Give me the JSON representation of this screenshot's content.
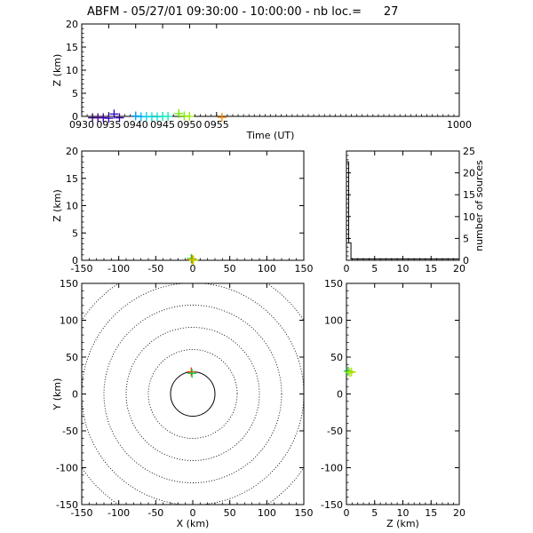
{
  "header": {
    "title": "ABFM - 05/27/01 09:30:00 - 10:00:00 - nb loc.=      27"
  },
  "chart_data": [
    {
      "id": "time-height",
      "type": "scatter",
      "xlabel": "Time (UT)",
      "ylabel": "Z (km)",
      "xlim": [
        930,
        1000
      ],
      "ylim": [
        0,
        20
      ],
      "xticks": [
        "0930",
        "0935",
        "0940",
        "0945",
        "0950",
        "0955",
        "1000"
      ],
      "xtick_values": [
        930,
        935,
        940,
        945,
        950,
        955,
        1000
      ],
      "yticks": [
        0,
        5,
        10,
        15,
        20
      ],
      "points": [
        {
          "x": 932,
          "y": -0.3,
          "color": "#330066"
        },
        {
          "x": 933,
          "y": -0.3,
          "color": "#440088"
        },
        {
          "x": 934,
          "y": -0.3,
          "color": "#4400aa"
        },
        {
          "x": 935,
          "y": -0.4,
          "color": "#3300bb"
        },
        {
          "x": 936,
          "y": 0.5,
          "color": "#2a00cc"
        },
        {
          "x": 937,
          "y": -0.3,
          "color": "#3300aa"
        },
        {
          "x": 940,
          "y": 0.1,
          "color": "#00a8ff"
        },
        {
          "x": 941,
          "y": -0.1,
          "color": "#00b4ff"
        },
        {
          "x": 942,
          "y": 0.0,
          "color": "#00ccee"
        },
        {
          "x": 943,
          "y": -0.1,
          "color": "#00dddd"
        },
        {
          "x": 944,
          "y": -0.1,
          "color": "#00e0d0"
        },
        {
          "x": 945,
          "y": 0.0,
          "color": "#00e6c0"
        },
        {
          "x": 946,
          "y": 0.0,
          "color": "#00ecb0"
        },
        {
          "x": 948,
          "y": 0.6,
          "color": "#66ee00"
        },
        {
          "x": 949,
          "y": 0.1,
          "color": "#88ee00"
        },
        {
          "x": 950,
          "y": 0.0,
          "color": "#99ee00"
        },
        {
          "x": 956,
          "y": -0.2,
          "color": "#ff8800"
        }
      ]
    },
    {
      "id": "x-height",
      "type": "scatter",
      "xlabel": "",
      "ylabel": "Z (km)",
      "xlim": [
        -150,
        150
      ],
      "ylim": [
        0,
        20
      ],
      "xticks": [
        -150,
        -100,
        -50,
        0,
        50,
        100,
        150
      ],
      "yticks": [
        0,
        5,
        10,
        15,
        20
      ],
      "points": [
        {
          "x": -2,
          "y": 0.3,
          "color": "#00cc33"
        },
        {
          "x": 0,
          "y": 0.2,
          "color": "#99ee00"
        },
        {
          "x": -1,
          "y": 0.1,
          "color": "#ff6600"
        },
        {
          "x": 1,
          "y": 0.0,
          "color": "#bbdd00"
        }
      ]
    },
    {
      "id": "source-histogram",
      "type": "line",
      "xlabel": "",
      "ylabel": "number of sources",
      "xlim": [
        0,
        20
      ],
      "ylim": [
        0,
        25
      ],
      "xticks": [
        0,
        5,
        10,
        15,
        20
      ],
      "yticks": [
        0,
        5,
        10,
        15,
        20,
        25
      ],
      "steps": [
        {
          "x0": 0.0,
          "x1": 0.4,
          "y": 22.5
        },
        {
          "x0": 0.4,
          "x1": 0.8,
          "y": 4
        },
        {
          "x0": 0.8,
          "x1": 20,
          "y": 0.3
        }
      ]
    },
    {
      "id": "plan-view",
      "type": "scatter",
      "xlabel": "X (km)",
      "ylabel": "Y (km)",
      "xlim": [
        -150,
        150
      ],
      "ylim": [
        -150,
        150
      ],
      "xticks": [
        -150,
        -100,
        -50,
        0,
        50,
        100,
        150
      ],
      "yticks": [
        -150,
        -100,
        -50,
        0,
        50,
        100,
        150
      ],
      "range_rings": [
        30,
        60,
        90,
        120,
        150,
        180
      ],
      "points": [
        {
          "x": -2,
          "y": 30,
          "color": "#ff3300"
        },
        {
          "x": -1,
          "y": 28,
          "color": "#00cc33"
        }
      ]
    },
    {
      "id": "height-y",
      "type": "scatter",
      "xlabel": "Z (km)",
      "ylabel": "",
      "xlim": [
        0,
        20
      ],
      "ylim": [
        -150,
        150
      ],
      "xticks": [
        0,
        5,
        10,
        15,
        20
      ],
      "yticks": [
        -150,
        -100,
        -50,
        0,
        50,
        100,
        150
      ],
      "points": [
        {
          "x": 0.3,
          "y": 31,
          "color": "#00cc33"
        },
        {
          "x": 0.6,
          "y": 29,
          "color": "#99ee00"
        },
        {
          "x": 0.9,
          "y": 30,
          "color": "#bbdd00"
        }
      ]
    }
  ]
}
